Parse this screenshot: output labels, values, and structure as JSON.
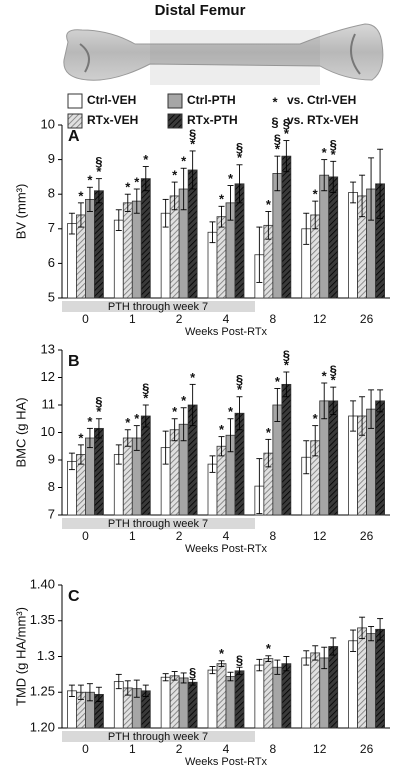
{
  "header": {
    "title": "Distal Femur"
  },
  "legend": {
    "entries": [
      {
        "name": "Ctrl-VEH",
        "color": "#ffffff",
        "hatch": false
      },
      {
        "name": "RTx-VEH",
        "color": "#e0e0e0",
        "hatch": true
      },
      {
        "name": "Ctrl-PTH",
        "color": "#a6a6a6",
        "hatch": false
      },
      {
        "name": "RTx-PTH",
        "color": "#3a3a3a",
        "hatch": true
      }
    ],
    "notes": [
      {
        "symbol": "*",
        "text": "vs. Ctrl-VEH"
      },
      {
        "symbol": "§",
        "text": "vs. RTx-VEH"
      }
    ]
  },
  "chart_data": [
    {
      "type": "bar",
      "panel": "A",
      "ylabel": "BV (mm³)",
      "xlabel": "Weeks Post-RTx",
      "band_label": "PTH through week 7",
      "categories": [
        "0",
        "1",
        "2",
        "4",
        "8",
        "12",
        "26"
      ],
      "ylim": [
        5,
        10
      ],
      "yticks": [
        5,
        6,
        7,
        8,
        9,
        10
      ],
      "series": [
        {
          "values": [
            7.15,
            7.25,
            7.45,
            6.9,
            6.25,
            7.0,
            8.05
          ],
          "errors": [
            0.3,
            0.3,
            0.4,
            0.3,
            0.8,
            0.45,
            0.3
          ],
          "markers": [
            null,
            null,
            null,
            null,
            null,
            null,
            null
          ]
        },
        {
          "values": [
            7.4,
            7.75,
            7.95,
            7.35,
            7.1,
            7.4,
            7.95
          ],
          "errors": [
            0.35,
            0.25,
            0.4,
            0.3,
            0.4,
            0.4,
            0.6
          ],
          "markers": [
            [
              "*"
            ],
            [
              "*"
            ],
            [
              "*"
            ],
            [
              "*"
            ],
            [
              "*"
            ],
            [
              "*"
            ],
            null
          ]
        },
        {
          "values": [
            7.85,
            7.8,
            8.15,
            7.75,
            8.6,
            8.55,
            8.15
          ],
          "errors": [
            0.35,
            0.35,
            0.6,
            0.5,
            0.5,
            0.45,
            0.9
          ],
          "markers": [
            [
              "*"
            ],
            [
              "*"
            ],
            [
              "*"
            ],
            [
              "*"
            ],
            [
              "§",
              "*"
            ],
            [
              "*"
            ],
            null
          ]
        },
        {
          "values": [
            8.1,
            8.45,
            8.7,
            8.3,
            9.1,
            8.5,
            8.3
          ],
          "errors": [
            0.35,
            0.35,
            0.55,
            0.55,
            0.45,
            0.45,
            1.0
          ],
          "markers": [
            [
              "§",
              "*"
            ],
            [
              "*"
            ],
            [
              "§",
              "*"
            ],
            [
              "§",
              "*"
            ],
            [
              "§",
              "*"
            ],
            [
              "§",
              "*"
            ],
            null
          ]
        }
      ]
    },
    {
      "type": "bar",
      "panel": "B",
      "ylabel": "BMC (g HA)",
      "xlabel": "Weeks Post-RTx",
      "band_label": "PTH through week 7",
      "categories": [
        "0",
        "1",
        "2",
        "4",
        "8",
        "12",
        "26"
      ],
      "ylim": [
        7,
        13
      ],
      "yticks": [
        7,
        8,
        9,
        10,
        11,
        12,
        13
      ],
      "series": [
        {
          "values": [
            8.95,
            9.2,
            9.45,
            8.85,
            8.05,
            9.1,
            10.6
          ],
          "errors": [
            0.3,
            0.35,
            0.6,
            0.3,
            1.0,
            0.6,
            0.55
          ],
          "markers": [
            null,
            null,
            null,
            null,
            null,
            null,
            null
          ]
        },
        {
          "values": [
            9.2,
            9.8,
            10.1,
            9.5,
            9.25,
            9.7,
            10.6
          ],
          "errors": [
            0.35,
            0.3,
            0.4,
            0.35,
            0.5,
            0.55,
            0.7
          ],
          "markers": [
            [
              "*"
            ],
            [
              "*"
            ],
            [
              "*"
            ],
            [
              "*"
            ],
            [
              "*"
            ],
            [
              "*"
            ],
            null
          ]
        },
        {
          "values": [
            9.8,
            9.8,
            10.3,
            9.9,
            11.0,
            11.15,
            10.85
          ],
          "errors": [
            0.35,
            0.45,
            0.6,
            0.6,
            0.6,
            0.65,
            0.7
          ],
          "markers": [
            [
              "*"
            ],
            [
              "*"
            ],
            [
              "*"
            ],
            [
              "*"
            ],
            [
              "*"
            ],
            [
              "*"
            ],
            null
          ]
        },
        {
          "values": [
            10.15,
            10.6,
            11.0,
            10.7,
            11.75,
            11.15,
            11.15
          ],
          "errors": [
            0.35,
            0.4,
            0.75,
            0.6,
            0.45,
            0.5,
            0.4
          ],
          "markers": [
            [
              "§",
              "*"
            ],
            [
              "§",
              "*"
            ],
            [
              "*"
            ],
            [
              "§",
              "*"
            ],
            [
              "§",
              "*"
            ],
            [
              "§",
              "*"
            ],
            null
          ]
        }
      ]
    },
    {
      "type": "bar",
      "panel": "C",
      "ylabel": "TMD (g HA/mm³)",
      "xlabel": "Weeks Post-RTx",
      "band_label": "PTH through week 7",
      "categories": [
        "0",
        "1",
        "2",
        "4",
        "8",
        "12",
        "26"
      ],
      "ylim": [
        1.2,
        1.4
      ],
      "yticks": [
        {
          "value": 1.2,
          "label": "1.20"
        },
        1.25,
        1.3,
        1.35,
        {
          "value": 1.4,
          "label": "1.40"
        }
      ],
      "series": [
        {
          "values": [
            1.252,
            1.265,
            1.271,
            1.281,
            1.288,
            1.298,
            1.322
          ],
          "errors": [
            0.008,
            0.01,
            0.005,
            0.005,
            0.008,
            0.01,
            0.015
          ],
          "markers": [
            null,
            null,
            null,
            null,
            null,
            null,
            null
          ]
        },
        {
          "values": [
            1.25,
            1.256,
            1.273,
            1.29,
            1.297,
            1.305,
            1.34
          ],
          "errors": [
            0.01,
            0.01,
            0.006,
            0.004,
            0.004,
            0.01,
            0.015
          ],
          "markers": [
            null,
            null,
            null,
            [
              "*"
            ],
            [
              "*"
            ],
            null,
            null
          ]
        },
        {
          "values": [
            1.25,
            1.255,
            1.27,
            1.272,
            1.285,
            1.298,
            1.332
          ],
          "errors": [
            0.012,
            0.012,
            0.007,
            0.006,
            0.01,
            0.015,
            0.01
          ],
          "markers": [
            null,
            null,
            null,
            null,
            null,
            null,
            null
          ]
        },
        {
          "values": [
            1.247,
            1.252,
            1.264,
            1.28,
            1.29,
            1.314,
            1.338
          ],
          "errors": [
            0.01,
            0.008,
            0.004,
            0.005,
            0.01,
            0.012,
            0.015
          ],
          "markers": [
            null,
            null,
            [
              "§"
            ],
            [
              "§"
            ],
            null,
            null,
            null
          ]
        }
      ]
    }
  ]
}
